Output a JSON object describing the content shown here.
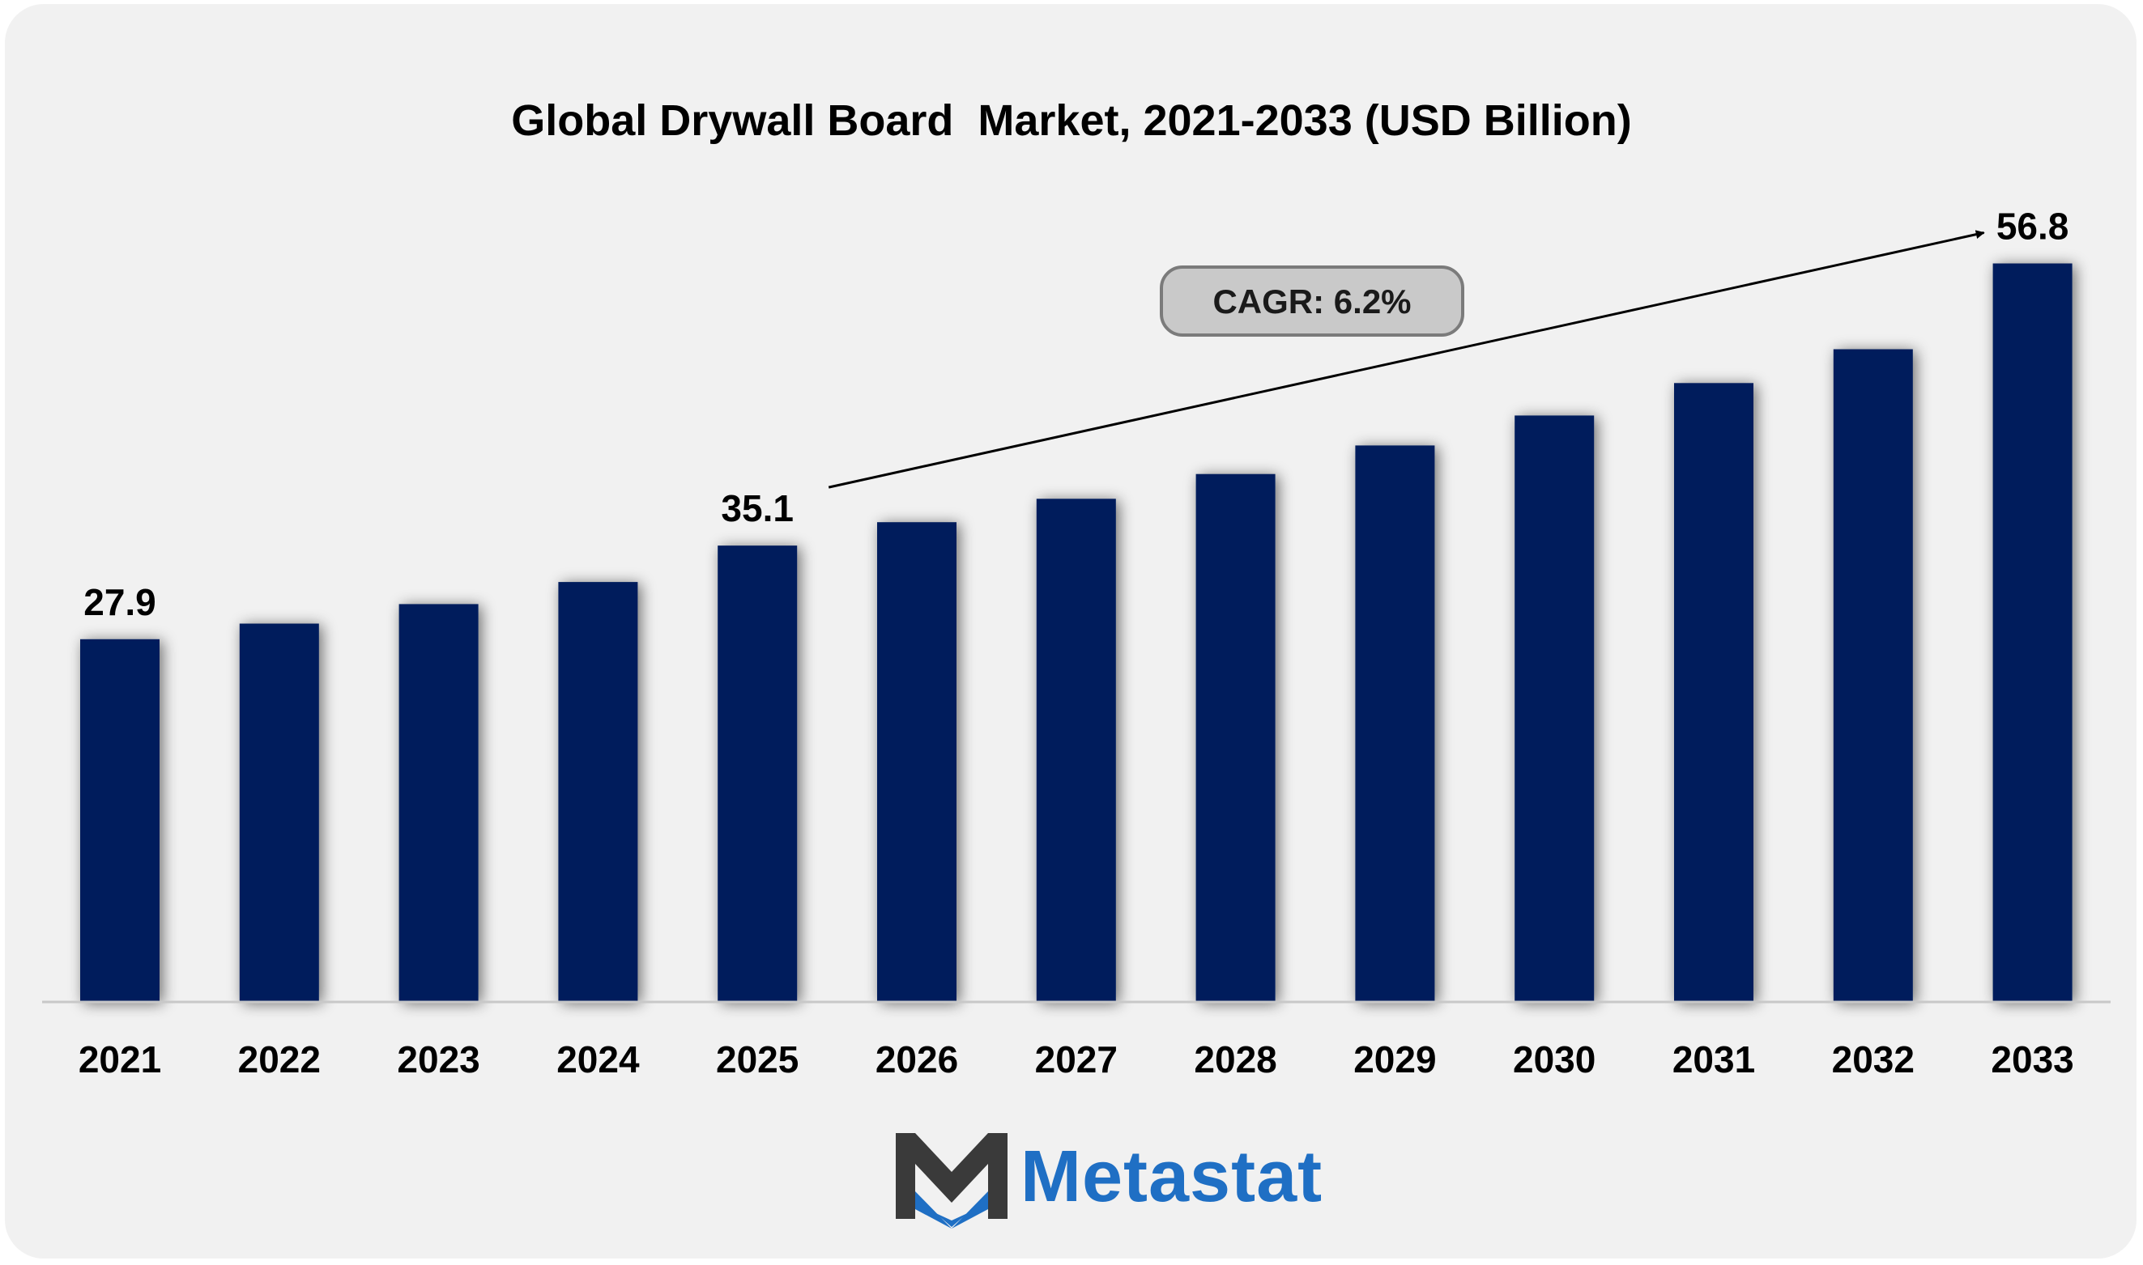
{
  "chart_data": {
    "type": "bar",
    "title": "Global Drywall Board  Market, 2021-2033 (USD Billion)",
    "xlabel": "",
    "ylabel": "",
    "categories": [
      "2021",
      "2022",
      "2023",
      "2024",
      "2025",
      "2026",
      "2027",
      "2028",
      "2029",
      "2030",
      "2031",
      "2032",
      "2033"
    ],
    "values": [
      27.9,
      29.1,
      30.6,
      32.3,
      35.1,
      36.9,
      38.7,
      40.6,
      42.8,
      45.1,
      47.6,
      50.2,
      56.8
    ],
    "data_labels": {
      "2021": "27.9",
      "2025": "35.1",
      "2033": "56.8"
    },
    "ylim": [
      0,
      61
    ],
    "grid": false,
    "legend": "none",
    "bar_color": "#021f5c",
    "annotation": {
      "text": "CAGR: 6.2%",
      "arrow_from": "2025",
      "arrow_to": "2033"
    }
  },
  "brand": {
    "name": "Metastat",
    "color": "#1f6fc4",
    "mark_dark": "#3a3a3a",
    "mark_accent": "#1f6fc4"
  }
}
